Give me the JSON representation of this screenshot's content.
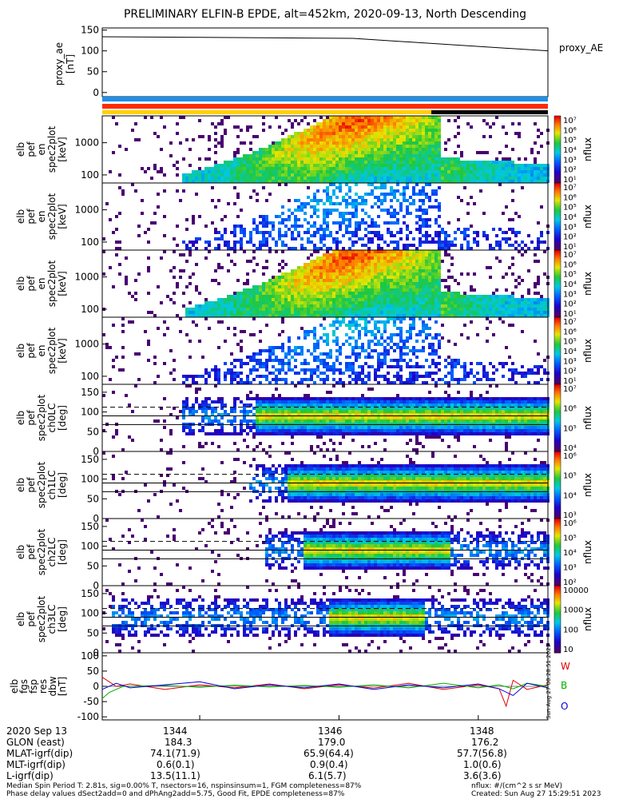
{
  "title": "PRELIMINARY ELFIN-B EPDE, alt=452km, 2020-09-13, North Descending",
  "colors": {
    "bar1": "#1f8fe8",
    "bar2": "#ff2b00",
    "bar3": "#ffd000",
    "bar3_alt": "#000000",
    "wave_w": "#e00000",
    "wave_b": "#00b000",
    "wave_o": "#0000e0"
  },
  "chart_data": [
    {
      "type": "line",
      "id": "proxy",
      "ylabel": [
        "proxy_ae",
        "[nT]"
      ],
      "yticks": [
        "150",
        "100",
        "50",
        "0"
      ],
      "ylim": [
        -10,
        155
      ],
      "series": [
        {
          "name": "proxy_AE",
          "x": [
            1342.6,
            1346.2,
            1349.0
          ],
          "values": [
            134,
            130,
            100
          ]
        }
      ]
    },
    {
      "type": "heatmap",
      "id": "en1",
      "ylabel": [
        "elb",
        "pef",
        "en",
        "spec2plot",
        "[keV]"
      ],
      "yticks": [
        "1000",
        "100"
      ],
      "colorbar": {
        "label": "nflux",
        "ticks": [
          "10⁷",
          "10⁶",
          "10⁵",
          "10⁴",
          "10³",
          "10²",
          "10¹"
        ]
      }
    },
    {
      "type": "heatmap",
      "id": "en2",
      "ylabel": [
        "elb",
        "pef",
        "en",
        "spec2plot",
        "[keV]"
      ],
      "yticks": [
        "1000",
        "100"
      ],
      "colorbar": {
        "label": "nflux",
        "ticks": [
          "10⁷",
          "10⁶",
          "10⁵",
          "10⁴",
          "10³",
          "10²",
          "10¹"
        ]
      }
    },
    {
      "type": "heatmap",
      "id": "en3",
      "ylabel": [
        "elb",
        "pef",
        "en",
        "spec2plot",
        "[keV]"
      ],
      "yticks": [
        "1000",
        "100"
      ],
      "colorbar": {
        "label": "nflux",
        "ticks": [
          "10⁷",
          "10⁶",
          "10⁵",
          "10⁴",
          "10³",
          "10²",
          "10¹"
        ]
      }
    },
    {
      "type": "heatmap",
      "id": "en4",
      "ylabel": [
        "elb",
        "pef",
        "en",
        "spec2plot",
        "[keV]"
      ],
      "yticks": [
        "1000",
        "100"
      ],
      "colorbar": {
        "label": "nflux",
        "ticks": [
          "10⁷",
          "10⁶",
          "10⁵",
          "10⁴",
          "10³",
          "10²",
          "10¹"
        ]
      }
    },
    {
      "type": "heatmap",
      "id": "pa0",
      "ylabel": [
        "elb",
        "pef",
        "spec2plot",
        "ch0LC",
        "[deg]"
      ],
      "yticks": [
        "150",
        "100",
        "50",
        "0"
      ],
      "colorbar": {
        "label": "nflux",
        "ticks": [
          "10⁷",
          "10⁶",
          "10⁵",
          "10⁴"
        ]
      }
    },
    {
      "type": "heatmap",
      "id": "pa1",
      "ylabel": [
        "elb",
        "pef",
        "spec2plot",
        "ch1LC",
        "[deg]"
      ],
      "yticks": [
        "150",
        "100",
        "50",
        "0"
      ],
      "colorbar": {
        "label": "nflux",
        "ticks": [
          "10⁶",
          "10⁵",
          "10⁴",
          "10³"
        ]
      }
    },
    {
      "type": "heatmap",
      "id": "pa2",
      "ylabel": [
        "elb",
        "pef",
        "spec2plot",
        "ch2LC",
        "[deg]"
      ],
      "yticks": [
        "150",
        "100",
        "50",
        "0"
      ],
      "colorbar": {
        "label": "nflux",
        "ticks": [
          "10⁶",
          "10⁵",
          "10⁴",
          "10³",
          "10²"
        ]
      }
    },
    {
      "type": "heatmap",
      "id": "pa3",
      "ylabel": [
        "elb",
        "pef",
        "spec2plot",
        "ch3LC",
        "[deg]"
      ],
      "yticks": [
        "150",
        "100",
        "50",
        "0"
      ],
      "colorbar": {
        "label": "nflux",
        "ticks": [
          "10000",
          "1000",
          "100",
          "10"
        ]
      }
    },
    {
      "type": "line",
      "id": "wave",
      "ylabel": [
        "elb",
        "fgs",
        "fsp",
        "res",
        "dbw",
        "[nT]"
      ],
      "yticks": [
        "100",
        "50",
        "0",
        "-50",
        "-100"
      ],
      "ylim": [
        -110,
        110
      ],
      "series": [
        {
          "name": "W",
          "x": [
            1342.6,
            1342.8,
            1343.0,
            1343.5,
            1344,
            1344.5,
            1345,
            1345.5,
            1346,
            1346.5,
            1347,
            1347.5,
            1348,
            1348.3,
            1348.4,
            1348.5,
            1348.7,
            1349.0
          ],
          "values": [
            30,
            0,
            8,
            -10,
            5,
            -5,
            8,
            -8,
            5,
            -6,
            10,
            -10,
            5,
            -8,
            -65,
            20,
            -10,
            5
          ]
        },
        {
          "name": "B",
          "x": [
            1342.6,
            1342.7,
            1342.9,
            1343.5,
            1344,
            1344.5,
            1345,
            1345.5,
            1346,
            1346.5,
            1347,
            1347.5,
            1348,
            1348.3,
            1348.5,
            1348.7,
            1349.0
          ],
          "values": [
            -40,
            -20,
            0,
            3,
            -3,
            4,
            -2,
            3,
            -3,
            5,
            -5,
            10,
            -5,
            5,
            -8,
            10,
            0
          ]
        },
        {
          "name": "O",
          "x": [
            1342.6,
            1342.8,
            1343.0,
            1343.5,
            1344,
            1344.5,
            1345,
            1345.5,
            1346,
            1346.5,
            1347,
            1347.5,
            1348,
            1348.3,
            1348.5,
            1348.7,
            1349.0
          ],
          "values": [
            -10,
            10,
            -5,
            5,
            15,
            -8,
            5,
            -5,
            8,
            -10,
            5,
            -5,
            8,
            -8,
            -30,
            10,
            -5
          ]
        }
      ]
    }
  ],
  "time_ticks": [
    "1344",
    "1346",
    "1348"
  ],
  "ephemeris": {
    "date": "2020 Sep 13",
    "rows": [
      {
        "label": "GLON (east)",
        "values": [
          "184.3",
          "179.0",
          "176.2"
        ]
      },
      {
        "label": "MLAT-igrf(dip)",
        "values": [
          "74.1(71.9)",
          "65.9(64.4)",
          "57.7(56.8)"
        ]
      },
      {
        "label": "MLT-igrf(dip)",
        "values": [
          "0.6(0.1)",
          "0.9(0.4)",
          "1.0(0.6)"
        ]
      },
      {
        "label": "L-igrf(dip)",
        "values": [
          "13.5(11.1)",
          "6.1(5.7)",
          "3.6(3.6)"
        ]
      }
    ]
  },
  "footer": {
    "line1": "Median Spin Period T: 2.81s, sig=0.00% T, nsectors=16, nspinsinsum=1, FGM completeness=87%",
    "line2": "Phase delay values dSect2add=0 and dPhAng2add=5.75, Good Fit, EPDE completeness=87%",
    "units": "nflux: #/(cm^2 s sr MeV)",
    "created": "Created: Sun Aug 27 15:29:51 2023",
    "stamp": "Sun Aug 27 08:28:51 2023"
  }
}
